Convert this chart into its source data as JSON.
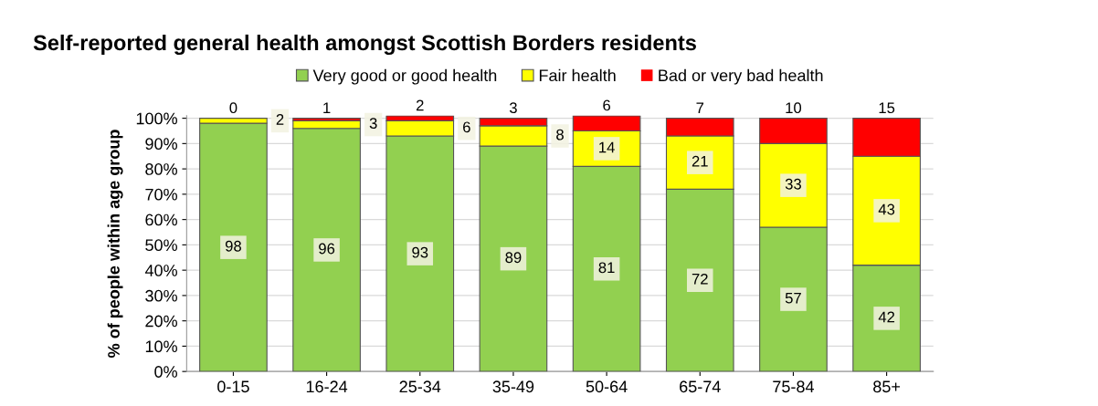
{
  "chart_data": {
    "type": "bar",
    "stacked": true,
    "title": "Self-reported general health amongst Scottish Borders residents",
    "ylabel": "% of people within age group",
    "categories": [
      "0-15",
      "16-24",
      "25-34",
      "35-49",
      "50-64",
      "65-74",
      "75-84",
      "85+"
    ],
    "series": [
      {
        "name": "Very good or good health",
        "color": "#92d050",
        "values": [
          98,
          96,
          93,
          89,
          81,
          72,
          57,
          42
        ]
      },
      {
        "name": "Fair health",
        "color": "#ffff00",
        "values": [
          2,
          3,
          6,
          8,
          14,
          21,
          33,
          43
        ]
      },
      {
        "name": "Bad or very bad health",
        "color": "#ff0000",
        "values": [
          0,
          1,
          2,
          3,
          6,
          7,
          10,
          15
        ]
      }
    ],
    "ylim": [
      0,
      101
    ],
    "yticks": [
      {
        "value": 0,
        "label": "0%"
      },
      {
        "value": 10,
        "label": "10%"
      },
      {
        "value": 20,
        "label": "20%"
      },
      {
        "value": 30,
        "label": "30%"
      },
      {
        "value": 40,
        "label": "40%"
      },
      {
        "value": 50,
        "label": "50%"
      },
      {
        "value": 60,
        "label": "60%"
      },
      {
        "value": 70,
        "label": "70%"
      },
      {
        "value": 80,
        "label": "80%"
      },
      {
        "value": 90,
        "label": "90%"
      },
      {
        "value": 100,
        "label": "100%"
      }
    ],
    "grid": "y",
    "legend": "top",
    "data_labels": true
  }
}
